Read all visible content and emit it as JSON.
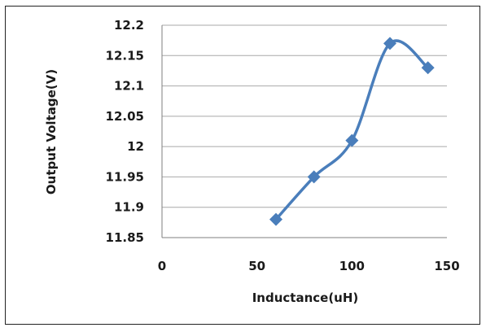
{
  "chart_data": {
    "type": "line",
    "title": "",
    "xlabel": "Inductance(uH)",
    "ylabel": "Output Voltage(V)",
    "xlim": [
      0,
      150
    ],
    "ylim": [
      11.85,
      12.2
    ],
    "x_ticks": [
      "0",
      "50",
      "100",
      "150"
    ],
    "y_ticks": [
      "11.85",
      "11.9",
      "11.95",
      "12",
      "12.05",
      "12.1",
      "12.15",
      "12.2"
    ],
    "grid": "horizontal",
    "legend": "none",
    "line_style": "smooth",
    "marker": "diamond",
    "series": [
      {
        "color": "#4a7ebb",
        "x": [
          60,
          80,
          100,
          120,
          140
        ],
        "y": [
          11.88,
          11.95,
          12.01,
          12.17,
          12.13
        ]
      }
    ]
  }
}
